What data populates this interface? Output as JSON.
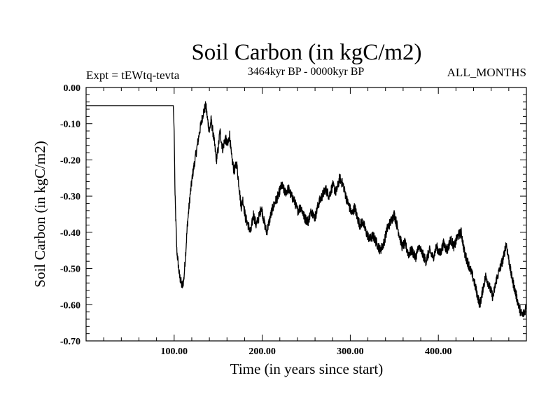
{
  "chart_data": {
    "type": "line",
    "title": "Soil Carbon (in kgC/m2)",
    "subtitle": "3464kyr BP - 0000kyr BP",
    "experiment": "Expt = tEWtq-tevta",
    "season": "ALL_MONTHS",
    "xlabel": "Time (in years since start)",
    "ylabel": "Soil Carbon (in kgC/m2)",
    "xlim": [
      0,
      500
    ],
    "ylim": [
      -0.7,
      0.0
    ],
    "xticks": [
      100,
      200,
      300,
      400
    ],
    "xtick_labels": [
      "100.00",
      "200.00",
      "300.00",
      "400.00"
    ],
    "yticks": [
      0.0,
      -0.1,
      -0.2,
      -0.3,
      -0.4,
      -0.5,
      -0.6,
      -0.7
    ],
    "ytick_labels": [
      "0.00",
      "-0.10",
      "-0.20",
      "-0.30",
      "-0.40",
      "-0.50",
      "-0.60",
      "-0.70"
    ],
    "grid": false,
    "series": [
      {
        "name": "Soil Carbon",
        "color": "#000000",
        "x": [
          0,
          99,
          100,
          101,
          103,
          106,
          109,
          111,
          113,
          115,
          118,
          121,
          125,
          129,
          133,
          136,
          138,
          140,
          142,
          145,
          148,
          150,
          152,
          155,
          158,
          161,
          163,
          165,
          168,
          171,
          174,
          176,
          178,
          181,
          184,
          187,
          190,
          193,
          196,
          199,
          202,
          205,
          208,
          211,
          214,
          218,
          222,
          226,
          230,
          233,
          236,
          240,
          244,
          248,
          252,
          256,
          260,
          264,
          268,
          272,
          276,
          280,
          284,
          288,
          292,
          294,
          296,
          299,
          302,
          305,
          308,
          311,
          314,
          318,
          322,
          326,
          330,
          334,
          338,
          342,
          346,
          350,
          353,
          356,
          359,
          362,
          366,
          370,
          374,
          378,
          382,
          386,
          390,
          394,
          398,
          402,
          406,
          410,
          414,
          418,
          422,
          426,
          428,
          430,
          433,
          436,
          440,
          444,
          447,
          449,
          451,
          454,
          458,
          462,
          466,
          470,
          474,
          477,
          479,
          481,
          483,
          486,
          489,
          492,
          495,
          498,
          500
        ],
        "y": [
          -0.05,
          -0.05,
          -0.12,
          -0.3,
          -0.45,
          -0.52,
          -0.55,
          -0.53,
          -0.46,
          -0.38,
          -0.3,
          -0.24,
          -0.18,
          -0.12,
          -0.07,
          -0.05,
          -0.09,
          -0.12,
          -0.09,
          -0.14,
          -0.2,
          -0.17,
          -0.12,
          -0.17,
          -0.14,
          -0.16,
          -0.13,
          -0.19,
          -0.23,
          -0.21,
          -0.28,
          -0.33,
          -0.31,
          -0.36,
          -0.38,
          -0.4,
          -0.35,
          -0.38,
          -0.36,
          -0.33,
          -0.37,
          -0.4,
          -0.37,
          -0.34,
          -0.32,
          -0.3,
          -0.27,
          -0.29,
          -0.28,
          -0.3,
          -0.31,
          -0.34,
          -0.33,
          -0.36,
          -0.37,
          -0.34,
          -0.36,
          -0.32,
          -0.3,
          -0.28,
          -0.3,
          -0.27,
          -0.29,
          -0.25,
          -0.27,
          -0.29,
          -0.31,
          -0.33,
          -0.35,
          -0.33,
          -0.36,
          -0.38,
          -0.37,
          -0.4,
          -0.42,
          -0.41,
          -0.43,
          -0.45,
          -0.43,
          -0.39,
          -0.37,
          -0.35,
          -0.38,
          -0.41,
          -0.44,
          -0.43,
          -0.46,
          -0.45,
          -0.47,
          -0.44,
          -0.46,
          -0.48,
          -0.45,
          -0.47,
          -0.44,
          -0.46,
          -0.43,
          -0.45,
          -0.42,
          -0.44,
          -0.41,
          -0.4,
          -0.43,
          -0.46,
          -0.48,
          -0.5,
          -0.53,
          -0.57,
          -0.6,
          -0.58,
          -0.55,
          -0.52,
          -0.55,
          -0.58,
          -0.53,
          -0.5,
          -0.47,
          -0.43,
          -0.46,
          -0.49,
          -0.52,
          -0.55,
          -0.58,
          -0.61,
          -0.63,
          -0.62,
          -0.6
        ]
      }
    ]
  }
}
